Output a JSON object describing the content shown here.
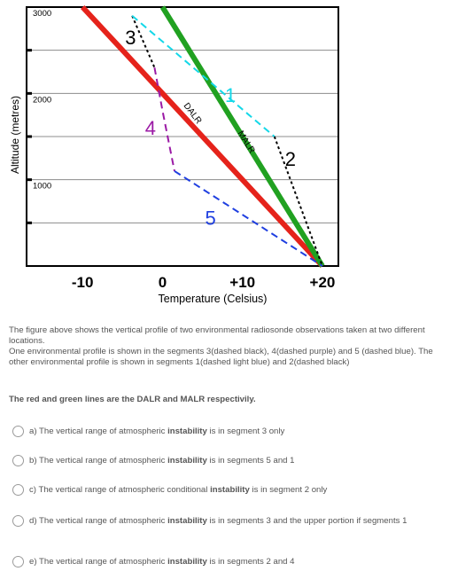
{
  "chart_data": {
    "type": "line",
    "xlabel": "Temperature (Celsius)",
    "ylabel": "Altitude (metres)",
    "xlim": [
      -17,
      22
    ],
    "ylim": [
      0,
      3000
    ],
    "x_ticks": [
      "-10",
      "0",
      "+10",
      "+20"
    ],
    "y_ticks": [
      "3000",
      "2000",
      "1000"
    ],
    "grid": true,
    "series": [
      {
        "name": "DALR",
        "color": "#e5231b",
        "style": "solid",
        "points": [
          [
            -10,
            3000
          ],
          [
            20,
            0
          ]
        ]
      },
      {
        "name": "MALR",
        "color": "#21a121",
        "style": "solid",
        "points": [
          [
            0,
            3000
          ],
          [
            20,
            0
          ]
        ]
      },
      {
        "name": "",
        "color": "#000000",
        "style": "dashed",
        "points": [
          [
            -3.8,
            2900
          ],
          [
            -1,
            2300
          ]
        ]
      },
      {
        "name": "",
        "color": "#000000",
        "style": "dashed",
        "points": [
          [
            14,
            1500
          ],
          [
            20,
            0
          ]
        ]
      },
      {
        "name": "",
        "color": "#9b1aa5",
        "style": "dashed",
        "points": [
          [
            -1,
            2300
          ],
          [
            0,
            1800
          ],
          [
            1.5,
            1100
          ]
        ]
      },
      {
        "name": "",
        "color": "#1f3fe0",
        "style": "dashed",
        "points": [
          [
            1.5,
            1100
          ],
          [
            20,
            0
          ]
        ]
      },
      {
        "name": "",
        "color": "#14d8e8",
        "style": "dashed",
        "points": [
          [
            -3.8,
            2900
          ],
          [
            14,
            1500
          ]
        ]
      }
    ],
    "annotations": [
      {
        "text": "3",
        "color": "#000000",
        "x": -4,
        "y": 2570
      },
      {
        "text": "4",
        "color": "#9b1aa5",
        "x": -1.5,
        "y": 1520
      },
      {
        "text": "5",
        "color": "#1f3fe0",
        "x": 6,
        "y": 480
      },
      {
        "text": "1",
        "color": "#14d8e8",
        "x": 8.5,
        "y": 1900
      },
      {
        "text": "2",
        "color": "#000000",
        "x": 16,
        "y": 1160
      },
      {
        "text": "DALR",
        "color": "#000000",
        "x": 3.5,
        "y": 1750
      },
      {
        "text": "MALR",
        "color": "#000000",
        "x": 10.2,
        "y": 1420
      }
    ]
  },
  "description": {
    "p1": "The figure above  shows the vertical profile of two environmental radiosonde observations taken at two different locations.",
    "p2": "One environmental  profile is shown in the segments 3(dashed black), 4(dashed purple) and 5 (dashed blue). The other environmental profile is shown in segments 1(dashed light blue) and 2(dashed black)",
    "p3": "The red and green lines are the DALR and MALR respectivily."
  },
  "options": [
    {
      "pre": "a)  The vertical range of atmospheric ",
      "bold": "instability",
      "post": " is in segment 3 only"
    },
    {
      "pre": "b)  The vertical range of atmospheric ",
      "bold": "instability",
      "post": " is in segments 5 and 1"
    },
    {
      "pre": "c)  The vertical range of atmospheric conditional ",
      "bold": "instability",
      "post": " is in segment 2 only"
    },
    {
      "pre": "d)  The vertical range of atmospheric ",
      "bold": "instability",
      "post": " is in segments 3 and the upper portion if segments 1"
    },
    {
      "pre": "e)  The vertical range of atmospheric ",
      "bold": "instability",
      "post": " is in segments 2 and 4"
    }
  ]
}
